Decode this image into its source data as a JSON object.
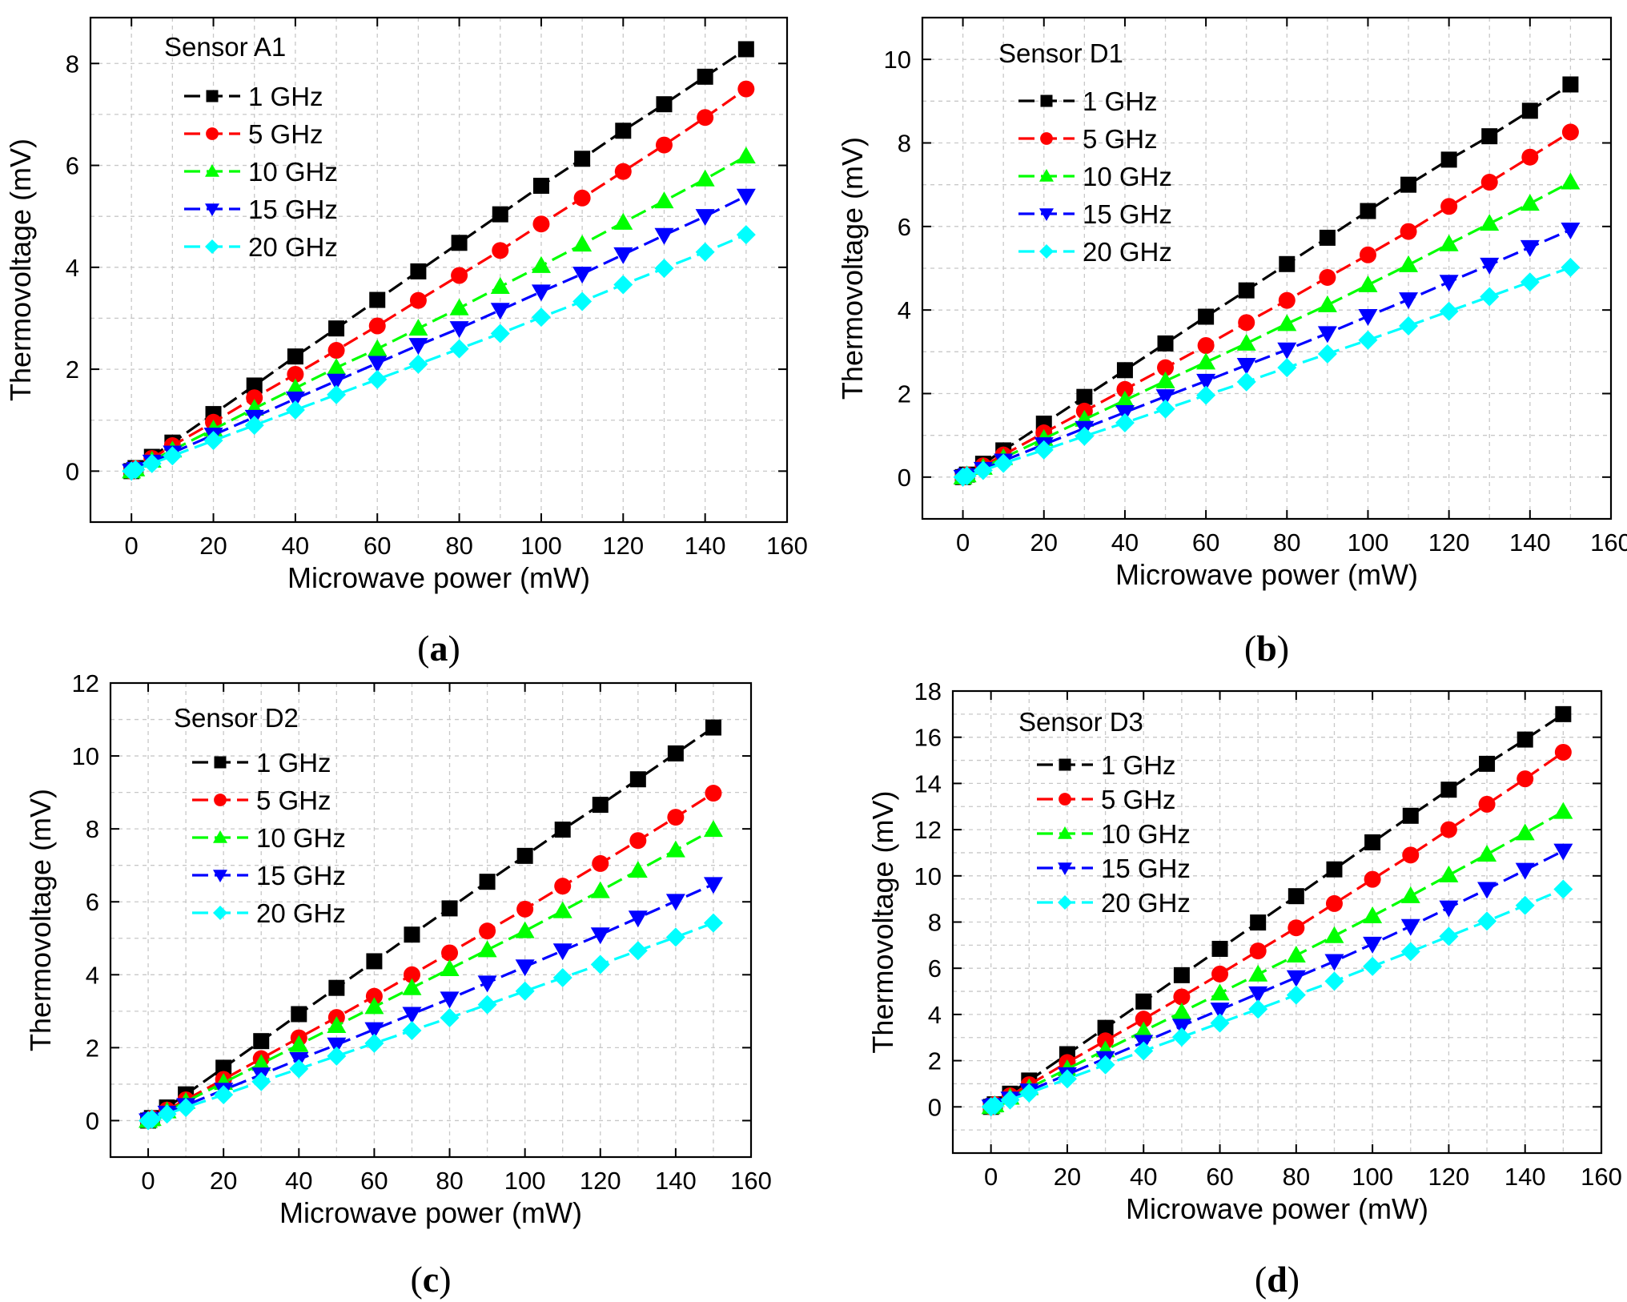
{
  "chart_data": [
    {
      "type": "line",
      "panel_label": "a",
      "sensor": "Sensor A1",
      "xlabel": "Microwave power (mW)",
      "ylabel": "Thermovoltage (mV)",
      "xlim": [
        -10,
        160
      ],
      "ylim": [
        -1,
        8.9
      ],
      "xticks": [
        0,
        20,
        40,
        60,
        80,
        100,
        120,
        140,
        160
      ],
      "yticks": [
        0,
        2,
        4,
        6,
        8
      ],
      "grid": true,
      "legend_position": "top-left",
      "x": [
        0,
        1,
        5,
        10,
        20,
        30,
        40,
        50,
        60,
        70,
        80,
        90,
        100,
        110,
        120,
        130,
        140,
        150
      ],
      "series": [
        {
          "name": "1 GHz",
          "color": "#000000",
          "marker": "square",
          "values": [
            0,
            0.06,
            0.28,
            0.56,
            1.12,
            1.68,
            2.25,
            2.8,
            3.36,
            3.92,
            4.48,
            5.04,
            5.6,
            6.13,
            6.68,
            7.2,
            7.74,
            8.28
          ]
        },
        {
          "name": "5 GHz",
          "color": "#ff0000",
          "marker": "circle",
          "values": [
            0,
            0.05,
            0.25,
            0.5,
            0.96,
            1.44,
            1.9,
            2.37,
            2.85,
            3.35,
            3.84,
            4.33,
            4.85,
            5.36,
            5.88,
            6.4,
            6.94,
            7.5
          ]
        },
        {
          "name": "10 GHz",
          "color": "#00ff00",
          "marker": "triangle-up",
          "values": [
            0,
            0.04,
            0.21,
            0.41,
            0.82,
            1.23,
            1.63,
            2.03,
            2.4,
            2.8,
            3.2,
            3.62,
            4.03,
            4.45,
            4.88,
            5.3,
            5.73,
            6.18
          ]
        },
        {
          "name": "15 GHz",
          "color": "#0000ff",
          "marker": "triangle-down",
          "values": [
            0,
            0.04,
            0.18,
            0.36,
            0.71,
            1.06,
            1.42,
            1.77,
            2.12,
            2.47,
            2.8,
            3.16,
            3.52,
            3.87,
            4.25,
            4.63,
            5.0,
            5.4
          ]
        },
        {
          "name": "20 GHz",
          "color": "#00ffff",
          "marker": "diamond",
          "values": [
            0,
            0.03,
            0.15,
            0.3,
            0.6,
            0.9,
            1.2,
            1.5,
            1.8,
            2.1,
            2.4,
            2.7,
            3.02,
            3.33,
            3.66,
            3.98,
            4.3,
            4.64
          ]
        }
      ]
    },
    {
      "type": "line",
      "panel_label": "b",
      "sensor": "Sensor D1",
      "xlabel": "Microwave power (mW)",
      "ylabel": "Thermovoltage (mV)",
      "xlim": [
        -10,
        160
      ],
      "ylim": [
        -1,
        11
      ],
      "xticks": [
        0,
        20,
        40,
        60,
        80,
        100,
        120,
        140,
        160
      ],
      "yticks": [
        0,
        2,
        4,
        6,
        8,
        10
      ],
      "grid": true,
      "legend_position": "top-left",
      "x": [
        0,
        1,
        5,
        10,
        20,
        30,
        40,
        50,
        60,
        70,
        80,
        90,
        100,
        110,
        120,
        130,
        140,
        150
      ],
      "series": [
        {
          "name": "1 GHz",
          "color": "#000000",
          "marker": "square",
          "values": [
            0,
            0.06,
            0.32,
            0.64,
            1.28,
            1.92,
            2.56,
            3.2,
            3.84,
            4.47,
            5.1,
            5.73,
            6.37,
            7.0,
            7.6,
            8.16,
            8.77,
            9.4
          ]
        },
        {
          "name": "5 GHz",
          "color": "#ff0000",
          "marker": "circle",
          "values": [
            0,
            0.05,
            0.27,
            0.53,
            1.06,
            1.58,
            2.1,
            2.62,
            3.15,
            3.7,
            4.23,
            4.78,
            5.32,
            5.88,
            6.48,
            7.06,
            7.66,
            8.26
          ]
        },
        {
          "name": "10 GHz",
          "color": "#00ff00",
          "marker": "triangle-up",
          "values": [
            0,
            0.05,
            0.23,
            0.46,
            0.92,
            1.38,
            1.84,
            2.3,
            2.75,
            3.2,
            3.67,
            4.12,
            4.6,
            5.08,
            5.58,
            6.07,
            6.55,
            7.06
          ]
        },
        {
          "name": "15 GHz",
          "color": "#0000ff",
          "marker": "triangle-down",
          "values": [
            0,
            0.04,
            0.19,
            0.39,
            0.78,
            1.17,
            1.55,
            1.93,
            2.3,
            2.68,
            3.05,
            3.44,
            3.85,
            4.25,
            4.67,
            5.08,
            5.5,
            5.92
          ]
        },
        {
          "name": "20 GHz",
          "color": "#00ffff",
          "marker": "diamond",
          "values": [
            0,
            0.03,
            0.16,
            0.33,
            0.65,
            0.98,
            1.3,
            1.63,
            1.96,
            2.28,
            2.62,
            2.95,
            3.28,
            3.62,
            3.97,
            4.32,
            4.67,
            5.02
          ]
        }
      ]
    },
    {
      "type": "line",
      "panel_label": "c",
      "sensor": "Sensor D2",
      "xlabel": "Microwave power (mW)",
      "ylabel": "Thermovoltage (mV)",
      "xlim": [
        -10,
        160
      ],
      "ylim": [
        -1,
        12
      ],
      "xticks": [
        0,
        20,
        40,
        60,
        80,
        100,
        120,
        140,
        160
      ],
      "yticks": [
        0,
        2,
        4,
        6,
        8,
        10,
        12
      ],
      "grid": true,
      "legend_position": "top-left",
      "x": [
        0,
        1,
        5,
        10,
        20,
        30,
        40,
        50,
        60,
        70,
        80,
        90,
        100,
        110,
        120,
        130,
        140,
        150
      ],
      "series": [
        {
          "name": "1 GHz",
          "color": "#000000",
          "marker": "square",
          "values": [
            0,
            0.07,
            0.36,
            0.72,
            1.45,
            2.18,
            2.92,
            3.64,
            4.37,
            5.1,
            5.82,
            6.55,
            7.26,
            7.98,
            8.66,
            9.36,
            10.07,
            10.78
          ]
        },
        {
          "name": "5 GHz",
          "color": "#ff0000",
          "marker": "circle",
          "values": [
            0,
            0.06,
            0.29,
            0.57,
            1.13,
            1.7,
            2.27,
            2.83,
            3.41,
            4.0,
            4.6,
            5.2,
            5.8,
            6.43,
            7.05,
            7.68,
            8.32,
            8.98
          ]
        },
        {
          "name": "10 GHz",
          "color": "#00ff00",
          "marker": "triangle-up",
          "values": [
            0,
            0.05,
            0.26,
            0.52,
            1.04,
            1.56,
            2.08,
            2.6,
            3.12,
            3.64,
            4.16,
            4.68,
            5.2,
            5.75,
            6.3,
            6.86,
            7.42,
            7.98
          ]
        },
        {
          "name": "15 GHz",
          "color": "#0000ff",
          "marker": "triangle-down",
          "values": [
            0,
            0.04,
            0.21,
            0.42,
            0.84,
            1.26,
            1.68,
            2.08,
            2.5,
            2.92,
            3.34,
            3.78,
            4.22,
            4.66,
            5.1,
            5.56,
            6.02,
            6.48
          ]
        },
        {
          "name": "20 GHz",
          "color": "#00ffff",
          "marker": "diamond",
          "values": [
            0,
            0.04,
            0.18,
            0.36,
            0.71,
            1.07,
            1.42,
            1.77,
            2.12,
            2.47,
            2.82,
            3.18,
            3.55,
            3.92,
            4.28,
            4.66,
            5.03,
            5.42
          ]
        }
      ]
    },
    {
      "type": "line",
      "panel_label": "d",
      "sensor": "Sensor D3",
      "xlabel": "Microwave power (mW)",
      "ylabel": "Thermovoltage (mV)",
      "xlim": [
        -10,
        160
      ],
      "ylim": [
        -2,
        18
      ],
      "xticks": [
        0,
        20,
        40,
        60,
        80,
        100,
        120,
        140,
        160
      ],
      "yticks": [
        0,
        2,
        4,
        6,
        8,
        10,
        12,
        14,
        16,
        18
      ],
      "grid": true,
      "legend_position": "top-left",
      "x": [
        0,
        1,
        5,
        10,
        20,
        30,
        40,
        50,
        60,
        70,
        80,
        90,
        100,
        110,
        120,
        130,
        140,
        150
      ],
      "series": [
        {
          "name": "1 GHz",
          "color": "#000000",
          "marker": "square",
          "values": [
            0,
            0.11,
            0.57,
            1.14,
            2.28,
            3.42,
            4.56,
            5.7,
            6.84,
            7.98,
            9.12,
            10.28,
            11.45,
            12.6,
            13.73,
            14.85,
            15.9,
            17.0
          ]
        },
        {
          "name": "5 GHz",
          "color": "#ff0000",
          "marker": "circle",
          "values": [
            0,
            0.1,
            0.48,
            0.96,
            1.92,
            2.86,
            3.8,
            4.76,
            5.75,
            6.75,
            7.75,
            8.8,
            9.85,
            10.9,
            12.0,
            13.1,
            14.2,
            15.35
          ]
        },
        {
          "name": "10 GHz",
          "color": "#00ff00",
          "marker": "triangle-up",
          "values": [
            0,
            0.08,
            0.41,
            0.82,
            1.64,
            2.46,
            3.28,
            4.1,
            4.92,
            5.74,
            6.56,
            7.4,
            8.26,
            9.13,
            10.03,
            10.93,
            11.85,
            12.78
          ]
        },
        {
          "name": "15 GHz",
          "color": "#0000ff",
          "marker": "triangle-down",
          "values": [
            0,
            0.07,
            0.35,
            0.7,
            1.4,
            2.1,
            2.8,
            3.5,
            4.2,
            4.9,
            5.6,
            6.3,
            7.05,
            7.82,
            8.62,
            9.42,
            10.25,
            11.08
          ]
        },
        {
          "name": "20 GHz",
          "color": "#00ffff",
          "marker": "diamond",
          "values": [
            0,
            0.06,
            0.3,
            0.6,
            1.21,
            1.82,
            2.42,
            3.02,
            3.63,
            4.23,
            4.84,
            5.44,
            6.08,
            6.72,
            7.38,
            8.04,
            8.72,
            9.42
          ]
        }
      ]
    }
  ]
}
